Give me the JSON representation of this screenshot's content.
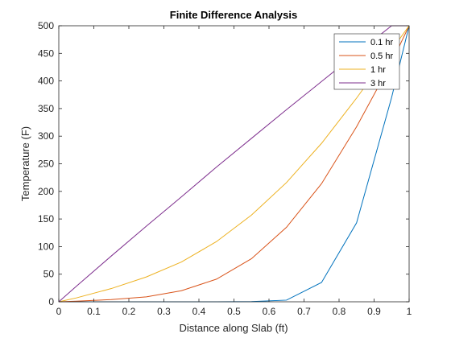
{
  "chart_data": {
    "type": "line",
    "title": "Finite Difference Analysis",
    "xlabel": "Distance along Slab (ft)",
    "ylabel": "Temperature (F)",
    "xlim": [
      0,
      1
    ],
    "ylim": [
      0,
      500
    ],
    "xticks": [
      0,
      0.1,
      0.2,
      0.3,
      0.4,
      0.5,
      0.6,
      0.7,
      0.8,
      0.9,
      1
    ],
    "xtick_labels": [
      "0",
      "0.1",
      "0.2",
      "0.3",
      "0.4",
      "0.5",
      "0.6",
      "0.7",
      "0.8",
      "0.9",
      "1"
    ],
    "yticks": [
      0,
      50,
      100,
      150,
      200,
      250,
      300,
      350,
      400,
      450,
      500
    ],
    "ytick_labels": [
      "0",
      "50",
      "100",
      "150",
      "200",
      "250",
      "300",
      "350",
      "400",
      "450",
      "500"
    ],
    "grid": false,
    "legend_position": "top-right",
    "x": [
      0,
      0.05,
      0.15,
      0.25,
      0.35,
      0.45,
      0.55,
      0.65,
      0.75,
      0.85,
      0.95,
      1
    ],
    "series": [
      {
        "name": "0.1 hr",
        "color": "#0072BD",
        "values": [
          0,
          0,
          0,
          0,
          0,
          0,
          0.3,
          3,
          35,
          143,
          370,
          500
        ]
      },
      {
        "name": "0.5 hr",
        "color": "#D95319",
        "values": [
          0,
          1,
          4,
          9,
          20,
          41,
          78,
          135,
          214,
          317,
          434,
          500
        ]
      },
      {
        "name": "1 hr",
        "color": "#EDB120",
        "values": [
          0,
          7,
          24,
          45,
          72,
          109,
          157,
          216,
          287,
          369,
          456,
          500
        ]
      },
      {
        "name": "3 hr",
        "color": "#7E2F8E",
        "values": [
          0,
          28,
          83,
          137,
          190,
          244,
          296,
          348,
          399,
          450,
          500,
          500
        ]
      }
    ]
  }
}
